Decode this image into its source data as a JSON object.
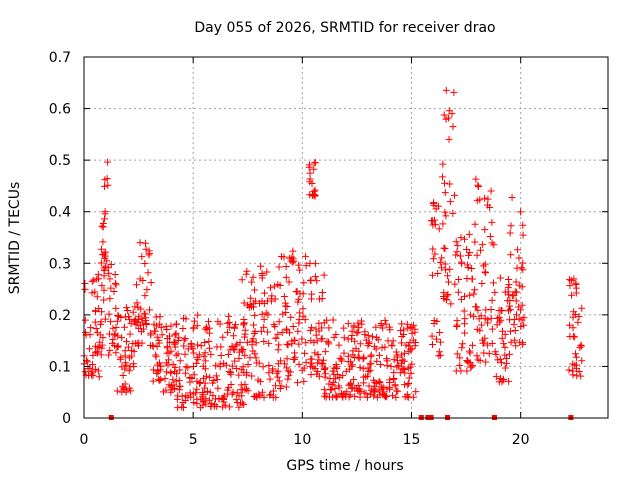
{
  "chart_data": {
    "type": "scatter",
    "title": "Day 055 of 2026, SRMTID for receiver drao",
    "xlabel": "GPS time / hours",
    "ylabel": "SRMTID / TECUs",
    "xlim": [
      0,
      24
    ],
    "ylim": [
      0,
      0.7
    ],
    "x_ticks": [
      0,
      5,
      10,
      15,
      20
    ],
    "y_ticks": [
      0,
      0.1,
      0.2,
      0.3,
      0.4,
      0.5,
      0.6,
      0.7
    ],
    "x_tick_labels": [
      "0",
      "5",
      "10",
      "15",
      "20"
    ],
    "y_tick_labels": [
      "0",
      "0.1",
      "0.2",
      "0.3",
      "0.4",
      "0.5",
      "0.6",
      "0.7"
    ],
    "grid": true,
    "marker": "plus",
    "color": "#ff0000",
    "data_gap_markers_x": [
      1.25,
      15.45,
      15.75,
      15.9,
      16.65,
      18.8,
      22.3
    ],
    "series": [
      {
        "name": "SRMTID",
        "segments": [
          {
            "x_start": 0.0,
            "x_end": 0.7,
            "y_min": 0.08,
            "y_max": 0.27
          },
          {
            "x_start": 0.6,
            "x_end": 1.0,
            "y_min": 0.12,
            "y_max": 0.33
          },
          {
            "x_start": 0.8,
            "x_end": 1.1,
            "y_min": 0.3,
            "y_max": 0.5
          },
          {
            "x_start": 1.1,
            "x_end": 1.5,
            "y_min": 0.12,
            "y_max": 0.3
          },
          {
            "x_start": 1.5,
            "x_end": 2.3,
            "y_min": 0.05,
            "y_max": 0.22
          },
          {
            "x_start": 2.3,
            "x_end": 3.1,
            "y_min": 0.14,
            "y_max": 0.35
          },
          {
            "x_start": 3.1,
            "x_end": 3.6,
            "y_min": 0.07,
            "y_max": 0.21
          },
          {
            "x_start": 3.6,
            "x_end": 4.2,
            "y_min": 0.05,
            "y_max": 0.18
          },
          {
            "x_start": 4.2,
            "x_end": 7.4,
            "y_min": 0.02,
            "y_max": 0.2
          },
          {
            "x_start": 7.2,
            "x_end": 9.0,
            "y_min": 0.04,
            "y_max": 0.3
          },
          {
            "x_start": 9.0,
            "x_end": 10.2,
            "y_min": 0.06,
            "y_max": 0.33
          },
          {
            "x_start": 10.3,
            "x_end": 10.6,
            "y_min": 0.43,
            "y_max": 0.5
          },
          {
            "x_start": 10.3,
            "x_end": 11.0,
            "y_min": 0.08,
            "y_max": 0.3
          },
          {
            "x_start": 11.0,
            "x_end": 15.2,
            "y_min": 0.04,
            "y_max": 0.19
          },
          {
            "x_start": 15.9,
            "x_end": 16.4,
            "y_min": 0.12,
            "y_max": 0.43
          },
          {
            "x_start": 16.4,
            "x_end": 17.0,
            "y_min": 0.22,
            "y_max": 0.64
          },
          {
            "x_start": 17.0,
            "x_end": 17.9,
            "y_min": 0.09,
            "y_max": 0.37
          },
          {
            "x_start": 17.9,
            "x_end": 18.8,
            "y_min": 0.1,
            "y_max": 0.47
          },
          {
            "x_start": 18.8,
            "x_end": 19.5,
            "y_min": 0.07,
            "y_max": 0.28
          },
          {
            "x_start": 19.5,
            "x_end": 20.2,
            "y_min": 0.14,
            "y_max": 0.45
          },
          {
            "x_start": 22.2,
            "x_end": 22.8,
            "y_min": 0.08,
            "y_max": 0.27
          }
        ]
      }
    ]
  }
}
